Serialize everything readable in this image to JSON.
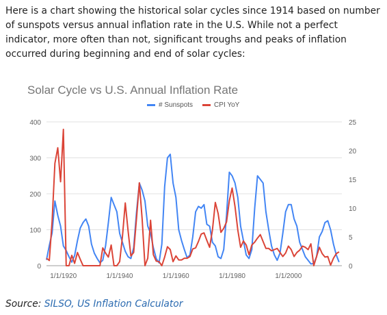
{
  "intro_text": "Here is a chart showing the historical solar cycles since 1914 based on number of sunspots versus annual inflation rate in the U.S. While not a perfect indicator, more often than not, significant troughs and peaks of inflation occurred during beginning and end of solar cycles:",
  "source": {
    "label": "Source:",
    "links": "SILSO, US Inflation Calculator"
  },
  "colors": {
    "sunspots": "#4285f4",
    "cpi": "#db4437",
    "grid": "#e0e0e0",
    "axis_text": "#616161",
    "title": "#757575"
  },
  "chart_data": {
    "type": "line",
    "title": "Solar Cycle vs U.S. Annual Inflation Rate",
    "xlabel": "",
    "ylabel": "",
    "x_range": [
      1914,
      2019
    ],
    "x_ticks": [
      "1/1/1920",
      "1/1/1940",
      "1/1/1960",
      "1/1/1980",
      "1/1/2000"
    ],
    "y_left": {
      "range": [
        0,
        400
      ],
      "ticks": [
        "0",
        "100",
        "200",
        "300",
        "400"
      ]
    },
    "y_right": {
      "range": [
        0,
        25
      ],
      "ticks": [
        "0",
        "5",
        "10",
        "15",
        "20",
        "25"
      ]
    },
    "grid": true,
    "legend_position": "top",
    "series": [
      {
        "name": "# Sunspots",
        "axis": "left",
        "x": [
          1914,
          1915,
          1916,
          1917,
          1918,
          1919,
          1920,
          1921,
          1922,
          1923,
          1924,
          1925,
          1926,
          1927,
          1928,
          1929,
          1930,
          1931,
          1932,
          1933,
          1934,
          1935,
          1936,
          1937,
          1938,
          1939,
          1940,
          1941,
          1942,
          1943,
          1944,
          1945,
          1946,
          1947,
          1948,
          1949,
          1950,
          1951,
          1952,
          1953,
          1954,
          1955,
          1956,
          1957,
          1958,
          1959,
          1960,
          1961,
          1962,
          1963,
          1964,
          1965,
          1966,
          1967,
          1968,
          1969,
          1970,
          1971,
          1972,
          1973,
          1974,
          1975,
          1976,
          1977,
          1978,
          1979,
          1980,
          1981,
          1982,
          1983,
          1984,
          1985,
          1986,
          1987,
          1988,
          1989,
          1990,
          1991,
          1992,
          1993,
          1994,
          1995,
          1996,
          1997,
          1998,
          1999,
          2000,
          2001,
          2002,
          2003,
          2004,
          2005,
          2006,
          2007,
          2008,
          2009,
          2010,
          2011,
          2012,
          2013,
          2014,
          2015,
          2016,
          2017,
          2018
        ],
        "values": [
          16,
          56,
          91,
          180,
          140,
          110,
          55,
          42,
          25,
          10,
          28,
          70,
          105,
          120,
          130,
          110,
          60,
          35,
          20,
          8,
          15,
          55,
          120,
          190,
          170,
          150,
          90,
          65,
          40,
          25,
          20,
          50,
          150,
          230,
          210,
          180,
          110,
          90,
          50,
          20,
          8,
          60,
          220,
          300,
          310,
          230,
          190,
          100,
          70,
          45,
          22,
          30,
          80,
          150,
          165,
          160,
          170,
          115,
          110,
          65,
          55,
          25,
          20,
          45,
          140,
          260,
          250,
          230,
          190,
          110,
          70,
          30,
          20,
          45,
          160,
          250,
          240,
          230,
          150,
          100,
          55,
          30,
          15,
          35,
          90,
          150,
          170,
          170,
          130,
          110,
          65,
          45,
          25,
          15,
          5,
          6,
          25,
          80,
          95,
          120,
          125,
          100,
          60,
          30,
          10
        ]
      },
      {
        "name": "CPI YoY",
        "axis": "right",
        "x": [
          1914,
          1915,
          1916,
          1917,
          1918,
          1919,
          1920,
          1921,
          1922,
          1923,
          1924,
          1925,
          1926,
          1927,
          1928,
          1929,
          1930,
          1931,
          1932,
          1933,
          1934,
          1935,
          1936,
          1937,
          1938,
          1939,
          1940,
          1941,
          1942,
          1943,
          1944,
          1945,
          1946,
          1947,
          1948,
          1949,
          1950,
          1951,
          1952,
          1953,
          1954,
          1955,
          1956,
          1957,
          1958,
          1959,
          1960,
          1961,
          1962,
          1963,
          1964,
          1965,
          1966,
          1967,
          1968,
          1969,
          1970,
          1971,
          1972,
          1973,
          1974,
          1975,
          1976,
          1977,
          1978,
          1979,
          1980,
          1981,
          1982,
          1983,
          1984,
          1985,
          1986,
          1987,
          1988,
          1989,
          1990,
          1991,
          1992,
          1993,
          1994,
          1995,
          1996,
          1997,
          1998,
          1999,
          2000,
          2001,
          2002,
          2003,
          2004,
          2005,
          2006,
          2007,
          2008,
          2009,
          2010,
          2011,
          2012,
          2013,
          2014,
          2015,
          2016,
          2017,
          2018
        ],
        "values": [
          1.3,
          0.9,
          7.7,
          17.8,
          20.5,
          14.6,
          23.7,
          0,
          0,
          1.8,
          0.4,
          2.3,
          1.1,
          0,
          0,
          0,
          0,
          0,
          0,
          0,
          3.1,
          2.2,
          1.5,
          3.6,
          0,
          0,
          0.7,
          5.1,
          10.9,
          6.1,
          1.7,
          2.3,
          8.3,
          14.4,
          8.1,
          0,
          1.3,
          7.9,
          1.9,
          0.8,
          0.7,
          0,
          1.5,
          3.3,
          2.8,
          0.7,
          1.7,
          1.0,
          1.0,
          1.3,
          1.3,
          1.6,
          2.9,
          3.1,
          4.2,
          5.5,
          5.7,
          4.4,
          3.2,
          6.2,
          11.0,
          9.1,
          5.8,
          6.5,
          7.6,
          11.3,
          13.5,
          10.3,
          6.2,
          3.2,
          4.3,
          3.6,
          1.9,
          3.6,
          4.1,
          4.8,
          5.4,
          4.2,
          3.0,
          3.0,
          2.6,
          2.8,
          3.0,
          2.3,
          1.6,
          2.2,
          3.4,
          2.8,
          1.6,
          2.3,
          2.7,
          3.4,
          3.2,
          2.8,
          3.8,
          0,
          1.6,
          3.2,
          2.1,
          1.5,
          1.6,
          0.1,
          1.3,
          2.1,
          2.4
        ]
      }
    ]
  }
}
